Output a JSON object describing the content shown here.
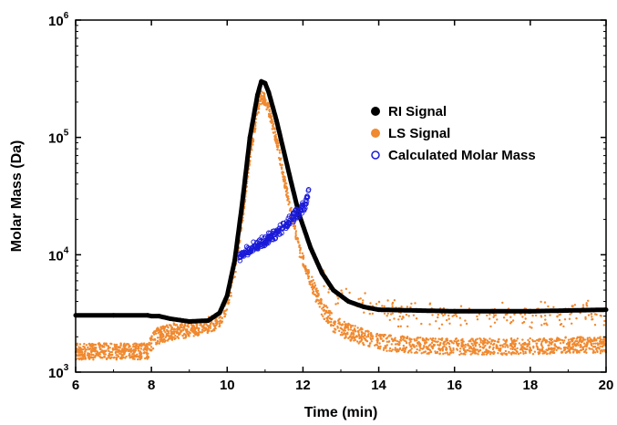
{
  "chart_data": {
    "type": "scatter",
    "title": "",
    "xlabel": "Time (min)",
    "ylabel": "Molar Mass (Da)",
    "xlim": [
      6,
      20
    ],
    "ylim": [
      1000,
      1000000
    ],
    "yscale": "log",
    "x_ticks": [
      6,
      8,
      10,
      12,
      14,
      16,
      18,
      20
    ],
    "x_tick_labels": [
      "6",
      "8",
      "10",
      "12",
      "14",
      "16",
      "18",
      "20"
    ],
    "y_ticks": [
      1000,
      10000,
      100000,
      1000000
    ],
    "y_tick_labels": [
      {
        "base": "10",
        "exp": "3"
      },
      {
        "base": "10",
        "exp": "4"
      },
      {
        "base": "10",
        "exp": "5"
      },
      {
        "base": "10",
        "exp": "6"
      }
    ],
    "grid": false,
    "legend_position": "top-right",
    "colors": {
      "ri": "#000000",
      "ls": "#f0892f",
      "mm": "#1a1ad8"
    },
    "series": [
      {
        "name": "RI Signal",
        "marker": "filled-circle",
        "color": "#000000",
        "x": [
          6.0,
          7.0,
          7.9,
          8.0,
          8.2,
          8.5,
          9.0,
          9.5,
          9.8,
          10.0,
          10.2,
          10.4,
          10.6,
          10.8,
          10.9,
          11.0,
          11.1,
          11.3,
          11.5,
          11.7,
          11.9,
          12.2,
          12.5,
          12.8,
          13.2,
          13.6,
          14.0,
          15.0,
          16.0,
          17.0,
          18.0,
          19.0,
          20.0
        ],
        "y": [
          3050,
          3050,
          3050,
          3000,
          3000,
          2850,
          2700,
          2750,
          3200,
          4500,
          9000,
          28000,
          100000,
          230000,
          300000,
          290000,
          240000,
          140000,
          75000,
          40000,
          22000,
          11500,
          7000,
          5000,
          4000,
          3600,
          3400,
          3350,
          3300,
          3300,
          3300,
          3350,
          3400
        ]
      },
      {
        "name": "LS Signal",
        "marker": "filled-circle",
        "color": "#f0892f",
        "x": [
          6.0,
          7.0,
          7.9,
          8.1,
          8.5,
          9.0,
          9.5,
          9.8,
          10.0,
          10.2,
          10.4,
          10.6,
          10.8,
          10.9,
          11.0,
          11.1,
          11.3,
          11.5,
          11.7,
          11.9,
          12.2,
          12.5,
          12.8,
          13.2,
          13.6,
          14.0,
          15.0,
          16.0,
          17.0,
          18.0,
          19.0,
          20.0
        ],
        "y": [
          1500,
          1500,
          1500,
          2000,
          2200,
          2300,
          2500,
          2800,
          3800,
          7000,
          20000,
          70000,
          170000,
          220000,
          210000,
          170000,
          95000,
          45000,
          22000,
          11000,
          6000,
          3500,
          2600,
          2200,
          2000,
          1800,
          1700,
          1650,
          1650,
          1650,
          1700,
          1700
        ]
      },
      {
        "name": "Calculated Molar Mass",
        "marker": "open-circle",
        "color": "#1a1ad8",
        "x": [
          10.35,
          10.45,
          10.55,
          10.65,
          10.75,
          10.85,
          10.95,
          11.05,
          11.15,
          11.25,
          11.35,
          11.45,
          11.55,
          11.65,
          11.75,
          11.85,
          11.95,
          12.05,
          12.1,
          12.15
        ],
        "y": [
          9500,
          10500,
          11000,
          11500,
          12000,
          12500,
          13000,
          13500,
          14500,
          15000,
          16000,
          17000,
          18000,
          19500,
          21000,
          22500,
          24000,
          27000,
          31000,
          36000
        ]
      }
    ]
  }
}
